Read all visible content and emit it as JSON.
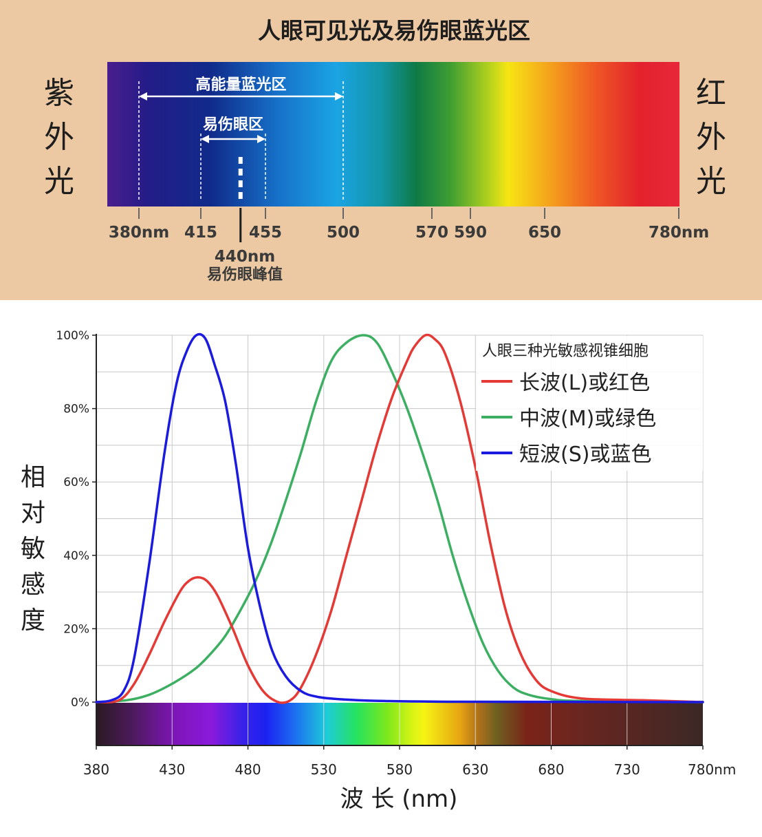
{
  "top": {
    "title": "人眼可见光及易伤眼蓝光区",
    "left_label": "紫外光",
    "right_label": "红外光",
    "high_energy_label": "高能量蓝光区",
    "harmful_label": "易伤眼区",
    "peak_value": "440nm",
    "peak_label": "易伤眼峰值",
    "ticks": [
      {
        "nm": 380,
        "label": "380nm"
      },
      {
        "nm": 415,
        "label": "415"
      },
      {
        "nm": 455,
        "label": "455"
      },
      {
        "nm": 500,
        "label": "500"
      },
      {
        "nm": 570,
        "label": "570"
      },
      {
        "nm": 590,
        "label": "590"
      },
      {
        "nm": 650,
        "label": "650"
      },
      {
        "nm": 780,
        "label": "780nm"
      }
    ],
    "ranges": {
      "high_energy": [
        380,
        500
      ],
      "harmful": [
        415,
        455
      ],
      "peak": 440
    },
    "colors": {
      "background": "#ecc9a2"
    }
  },
  "chart_data": {
    "type": "line",
    "ylabel": "相对敏感度",
    "xlabel": "波 长 (nm)",
    "xlim": [
      380,
      780
    ],
    "ylim": [
      0,
      100
    ],
    "x_ticks": [
      380,
      430,
      480,
      530,
      580,
      630,
      680,
      730,
      780
    ],
    "x_tick_labels": [
      "380",
      "430",
      "480",
      "530",
      "580",
      "630",
      "680",
      "730",
      "780nm"
    ],
    "y_ticks": [
      0,
      20,
      40,
      60,
      80,
      100
    ],
    "y_tick_labels": [
      "0%",
      "20%",
      "40%",
      "60%",
      "80%",
      "100%"
    ],
    "grid": true,
    "legend": {
      "title": "人眼三种光敏感视锥细胞",
      "position": "top-right"
    },
    "series": [
      {
        "name": "长波(L)或红色",
        "color": "#e53935",
        "points": [
          [
            380,
            0
          ],
          [
            395,
            0.5
          ],
          [
            405,
            5
          ],
          [
            415,
            13
          ],
          [
            425,
            22
          ],
          [
            435,
            30
          ],
          [
            441,
            33
          ],
          [
            447,
            34
          ],
          [
            453,
            33
          ],
          [
            460,
            29
          ],
          [
            470,
            20
          ],
          [
            480,
            10
          ],
          [
            490,
            3
          ],
          [
            500,
            0
          ],
          [
            508,
            0.5
          ],
          [
            515,
            4
          ],
          [
            525,
            13
          ],
          [
            535,
            25
          ],
          [
            545,
            40
          ],
          [
            555,
            55
          ],
          [
            565,
            70
          ],
          [
            575,
            83
          ],
          [
            585,
            93
          ],
          [
            590,
            97
          ],
          [
            597,
            100
          ],
          [
            603,
            99
          ],
          [
            610,
            95
          ],
          [
            620,
            82
          ],
          [
            630,
            64
          ],
          [
            640,
            43
          ],
          [
            650,
            25
          ],
          [
            660,
            13
          ],
          [
            670,
            6
          ],
          [
            680,
            3
          ],
          [
            700,
            1
          ],
          [
            740,
            0.5
          ],
          [
            780,
            0
          ]
        ]
      },
      {
        "name": "中波(M)或绿色",
        "color": "#3daf62",
        "points": [
          [
            380,
            0
          ],
          [
            400,
            0.5
          ],
          [
            415,
            2
          ],
          [
            430,
            5
          ],
          [
            445,
            9
          ],
          [
            455,
            13
          ],
          [
            465,
            18
          ],
          [
            475,
            25
          ],
          [
            485,
            33
          ],
          [
            495,
            43
          ],
          [
            505,
            55
          ],
          [
            515,
            68
          ],
          [
            525,
            82
          ],
          [
            535,
            93
          ],
          [
            545,
            98
          ],
          [
            556,
            100
          ],
          [
            565,
            98
          ],
          [
            575,
            90
          ],
          [
            585,
            80
          ],
          [
            595,
            68
          ],
          [
            605,
            55
          ],
          [
            615,
            40
          ],
          [
            625,
            27
          ],
          [
            635,
            16
          ],
          [
            645,
            8.5
          ],
          [
            655,
            4
          ],
          [
            665,
            2
          ],
          [
            680,
            0.8
          ],
          [
            700,
            0.3
          ],
          [
            780,
            0
          ]
        ]
      },
      {
        "name": "短波(S)或蓝色",
        "color": "#1a1ae0",
        "points": [
          [
            380,
            0
          ],
          [
            390,
            0.5
          ],
          [
            398,
            3
          ],
          [
            405,
            12
          ],
          [
            415,
            38
          ],
          [
            425,
            68
          ],
          [
            433,
            87
          ],
          [
            440,
            96
          ],
          [
            446,
            100
          ],
          [
            452,
            99
          ],
          [
            458,
            92
          ],
          [
            465,
            82
          ],
          [
            472,
            65
          ],
          [
            480,
            42
          ],
          [
            488,
            26
          ],
          [
            496,
            14
          ],
          [
            505,
            7
          ],
          [
            515,
            3
          ],
          [
            525,
            1.5
          ],
          [
            540,
            0.8
          ],
          [
            570,
            0.3
          ],
          [
            620,
            0.1
          ],
          [
            780,
            0
          ]
        ]
      }
    ]
  }
}
